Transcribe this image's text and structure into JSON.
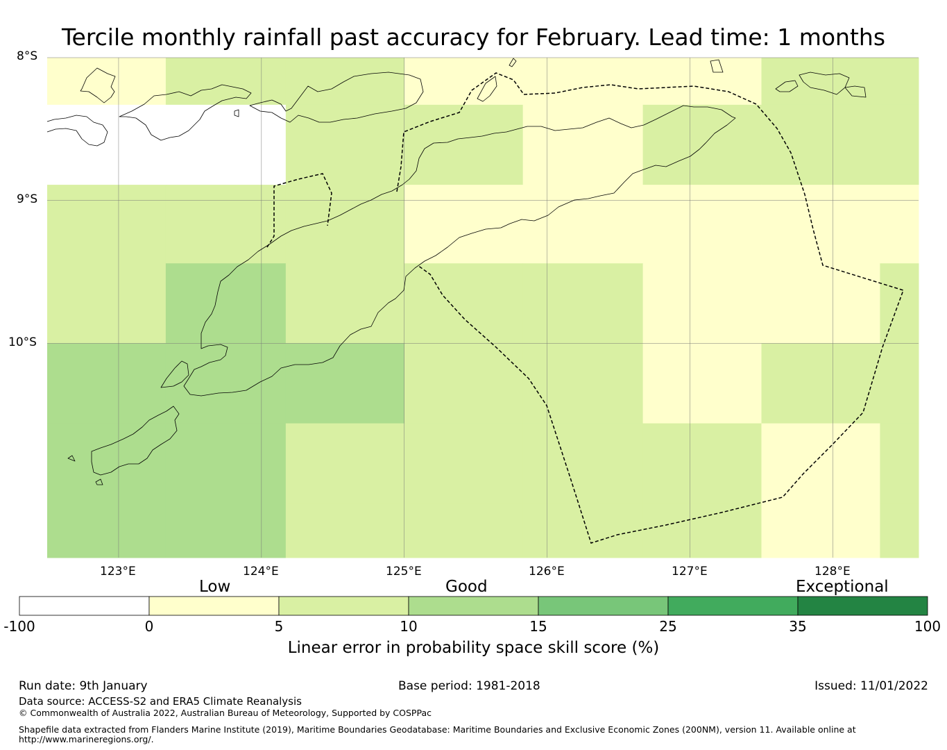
{
  "title": "Tercile monthly rainfall past accuracy for February. Lead time: 1 months",
  "map": {
    "lon_range": [
      122.5,
      128.6
    ],
    "lat_range": [
      -11.5,
      -8.0
    ],
    "cell_size_deg": 0.833,
    "latitude_labels": [
      {
        "lat": -8,
        "text": "8°S"
      },
      {
        "lat": -9,
        "text": "9°S"
      },
      {
        "lat": -10,
        "text": "10°S"
      }
    ],
    "longitude_labels": [
      {
        "lon": 123,
        "text": "123°E"
      },
      {
        "lon": 124,
        "text": "124°E"
      },
      {
        "lon": 125,
        "text": "125°E"
      },
      {
        "lon": 126,
        "text": "126°E"
      },
      {
        "lon": 127,
        "text": "127°E"
      },
      {
        "lon": 128,
        "text": "128°E"
      }
    ],
    "grid_column_edges_lon": [
      122.5,
      123.33,
      124.17,
      125.0,
      125.83,
      126.67,
      127.5,
      128.33,
      128.6
    ],
    "grid_row_edges_lat": [
      -8.0,
      -8.33,
      -8.89,
      -9.44,
      -10.0,
      -10.56,
      -11.12,
      -11.5
    ],
    "grid_classes": [
      [
        1,
        2,
        2,
        1,
        1,
        1,
        2,
        2
      ],
      [
        0,
        0,
        2,
        2,
        1,
        2,
        2,
        2
      ],
      [
        2,
        2,
        2,
        1,
        1,
        1,
        1,
        1
      ],
      [
        2,
        3,
        2,
        2,
        2,
        1,
        1,
        2
      ],
      [
        3,
        3,
        3,
        2,
        2,
        1,
        2,
        2
      ],
      [
        3,
        3,
        2,
        2,
        2,
        2,
        1,
        2
      ],
      [
        3,
        3,
        2,
        2,
        2,
        2,
        1,
        2
      ]
    ]
  },
  "colorbar": {
    "categories": [
      {
        "label": "Low",
        "position": "left"
      },
      {
        "label": "Good",
        "position": "center"
      },
      {
        "label": "Exceptional",
        "position": "right"
      }
    ],
    "ticks": [
      "-100",
      "0",
      "5",
      "10",
      "15",
      "25",
      "35",
      "100"
    ],
    "bins": [
      {
        "from": -100,
        "to": 0,
        "color": "#ffffff"
      },
      {
        "from": 0,
        "to": 5,
        "color": "#ffffcc"
      },
      {
        "from": 5,
        "to": 10,
        "color": "#d9f0a3"
      },
      {
        "from": 10,
        "to": 15,
        "color": "#addd8e"
      },
      {
        "from": 15,
        "to": 25,
        "color": "#78c679"
      },
      {
        "from": 25,
        "to": 35,
        "color": "#41ab5d"
      },
      {
        "from": 35,
        "to": 100,
        "color": "#238443"
      }
    ],
    "label": "Linear error in probability space skill score (%)"
  },
  "footer": {
    "run_date": "Run date: 9th January",
    "base_period": "Base period: 1981-2018",
    "issued": "Issued: 11/01/2022",
    "data_source": "Data source: ACCESS-S2 and ERA5 Climate Reanalysis",
    "copyright": "© Commonwealth of Australia 2022, Australian Bureau of Meteorology, Supported by COSPPac",
    "shapefile_line1": "Shapefile data extracted from Flanders Marine Institute (2019), Maritime Boundaries Geodatabase: Maritime Boundaries and Exclusive Economic Zones (200NM), version 11. Available online at",
    "shapefile_line2": "http://www.marineregions.org/."
  }
}
